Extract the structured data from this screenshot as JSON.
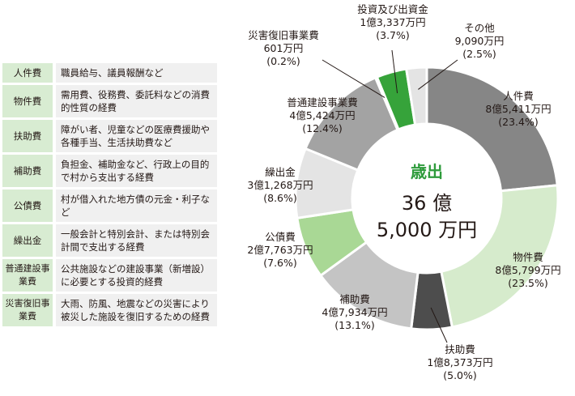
{
  "legend": [
    {
      "term": "人件費",
      "desc": "職員給与、議員報酬など"
    },
    {
      "term": "物件費",
      "desc": "需用費、役務費、委託料などの消費的性質の経費"
    },
    {
      "term": "扶助費",
      "desc": "障がい者、児童などの医療費援助や各種手当、生活扶助費など"
    },
    {
      "term": "補助費",
      "desc": "負担金、補助金など、行政上の目的で村から支出する経費"
    },
    {
      "term": "公債費",
      "desc": "村が借入れた地方債の元金・利子など"
    },
    {
      "term": "繰出金",
      "desc": "一般会計と特別会計、または特別会計間で支出する経費"
    },
    {
      "term": "普通建設事業費",
      "desc": "公共施設などの建設事業（新増設）に必要とする投資的経費"
    },
    {
      "term": "災害復旧事業費",
      "desc": "大雨、防風、地震などの災害により被災した施設を復旧するための経費"
    }
  ],
  "chart_data": {
    "type": "pie",
    "style": "donut",
    "center": {
      "title": "歳出",
      "line1": "36 億",
      "line2": "5,000 万円"
    },
    "slices": [
      {
        "name": "人件費",
        "amount": "8億5,411万円",
        "percent": 23.4,
        "percent_label": "(23.4%)",
        "color": "#868686"
      },
      {
        "name": "物件費",
        "amount": "8億5,799万円",
        "percent": 23.5,
        "percent_label": "(23.5%)",
        "color": "#d6ebcc"
      },
      {
        "name": "扶助費",
        "amount": "1億8,373万円",
        "percent": 5.0,
        "percent_label": "(5.0%)",
        "color": "#4d4d4d"
      },
      {
        "name": "補助費",
        "amount": "4億7,934万円",
        "percent": 13.1,
        "percent_label": "(13.1%)",
        "color": "#c4c4c4"
      },
      {
        "name": "公債費",
        "amount": "2億7,763万円",
        "percent": 7.6,
        "percent_label": "(7.6%)",
        "color": "#a9d895"
      },
      {
        "name": "繰出金",
        "amount": "3億1,268万円",
        "percent": 8.6,
        "percent_label": "(8.6%)",
        "color": "#e4e4e4"
      },
      {
        "name": "普通建設事業費",
        "amount": "4億5,424万円",
        "percent": 12.4,
        "percent_label": "(12.4%)",
        "color": "#a3a3a3"
      },
      {
        "name": "災害復旧事業費",
        "amount": "601万円",
        "percent": 0.2,
        "percent_label": "(0.2%)",
        "color": "#36a33a"
      },
      {
        "name": "投資及び出資金",
        "amount": "1億3,337万円",
        "percent": 3.7,
        "percent_label": "(3.7%)",
        "color": "#36a33a"
      },
      {
        "name": "その他",
        "amount": "9,090万円",
        "percent": 2.5,
        "percent_label": "(2.5%)",
        "color": "#e4e4e4"
      }
    ]
  }
}
